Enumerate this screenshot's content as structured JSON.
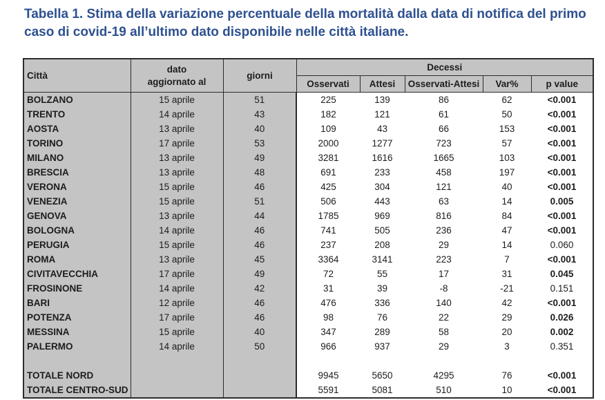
{
  "title": "Tabella 1. Stima della variazione percentuale della mortalità dalla data di notifica del primo caso di covid-19 all’ultimo dato disponibile nelle città italiane.",
  "colors": {
    "title_blue": "#2e5190",
    "header_gray": "#c4c4c4",
    "border_dark": "#2b2b2b",
    "text": "#1c1c1c"
  },
  "table": {
    "headers": {
      "citta": "Città",
      "dato_line1": "dato",
      "dato_line2": "aggiornato al",
      "giorni": "giorni",
      "decessi": "Decessi",
      "sub": [
        "Osservati",
        "Attesi",
        "Osservati-Attesi",
        "Var%",
        "p value"
      ]
    },
    "rows": [
      {
        "citta": "BOLZANO",
        "dato": "15 aprile",
        "giorni": "51",
        "osservati": "225",
        "attesi": "139",
        "diff": "86",
        "var": "62",
        "p": "<0.001",
        "p_bold": true
      },
      {
        "citta": "TRENTO",
        "dato": "14 aprile",
        "giorni": "43",
        "osservati": "182",
        "attesi": "121",
        "diff": "61",
        "var": "50",
        "p": "<0.001",
        "p_bold": true
      },
      {
        "citta": "AOSTA",
        "dato": "13 aprile",
        "giorni": "40",
        "osservati": "109",
        "attesi": "43",
        "diff": "66",
        "var": "153",
        "p": "<0.001",
        "p_bold": true
      },
      {
        "citta": "TORINO",
        "dato": "17 aprile",
        "giorni": "53",
        "osservati": "2000",
        "attesi": "1277",
        "diff": "723",
        "var": "57",
        "p": "<0.001",
        "p_bold": true
      },
      {
        "citta": "MILANO",
        "dato": "13 aprile",
        "giorni": "49",
        "osservati": "3281",
        "attesi": "1616",
        "diff": "1665",
        "var": "103",
        "p": "<0.001",
        "p_bold": true
      },
      {
        "citta": "BRESCIA",
        "dato": "13 aprile",
        "giorni": "48",
        "osservati": "691",
        "attesi": "233",
        "diff": "458",
        "var": "197",
        "p": "<0.001",
        "p_bold": true
      },
      {
        "citta": "VERONA",
        "dato": "15 aprile",
        "giorni": "46",
        "osservati": "425",
        "attesi": "304",
        "diff": "121",
        "var": "40",
        "p": "<0.001",
        "p_bold": true
      },
      {
        "citta": "VENEZIA",
        "dato": "15 aprile",
        "giorni": "51",
        "osservati": "506",
        "attesi": "443",
        "diff": "63",
        "var": "14",
        "p": "0.005",
        "p_bold": true
      },
      {
        "citta": "GENOVA",
        "dato": "13 aprile",
        "giorni": "44",
        "osservati": "1785",
        "attesi": "969",
        "diff": "816",
        "var": "84",
        "p": "<0.001",
        "p_bold": true
      },
      {
        "citta": "BOLOGNA",
        "dato": "14 aprile",
        "giorni": "46",
        "osservati": "741",
        "attesi": "505",
        "diff": "236",
        "var": "47",
        "p": "<0.001",
        "p_bold": true
      },
      {
        "citta": "PERUGIA",
        "dato": "15 aprile",
        "giorni": "46",
        "osservati": "237",
        "attesi": "208",
        "diff": "29",
        "var": "14",
        "p": "0.060",
        "p_bold": false
      },
      {
        "citta": "ROMA",
        "dato": "13 aprile",
        "giorni": "45",
        "osservati": "3364",
        "attesi": "3141",
        "diff": "223",
        "var": "7",
        "p": "<0.001",
        "p_bold": true
      },
      {
        "citta": "CIVITAVECCHIA",
        "dato": "17 aprile",
        "giorni": "49",
        "osservati": "72",
        "attesi": "55",
        "diff": "17",
        "var": "31",
        "p": "0.045",
        "p_bold": true
      },
      {
        "citta": "FROSINONE",
        "dato": "14 aprile",
        "giorni": "42",
        "osservati": "31",
        "attesi": "39",
        "diff": "-8",
        "var": "-21",
        "p": "0.151",
        "p_bold": false
      },
      {
        "citta": "BARI",
        "dato": "12 aprile",
        "giorni": "46",
        "osservati": "476",
        "attesi": "336",
        "diff": "140",
        "var": "42",
        "p": "<0.001",
        "p_bold": true
      },
      {
        "citta": "POTENZA",
        "dato": "17 aprile",
        "giorni": "46",
        "osservati": "98",
        "attesi": "76",
        "diff": "22",
        "var": "29",
        "p": "0.026",
        "p_bold": true
      },
      {
        "citta": "MESSINA",
        "dato": "15 aprile",
        "giorni": "40",
        "osservati": "347",
        "attesi": "289",
        "diff": "58",
        "var": "20",
        "p": "0.002",
        "p_bold": true
      },
      {
        "citta": "PALERMO",
        "dato": "14 aprile",
        "giorni": "50",
        "osservati": "966",
        "attesi": "937",
        "diff": "29",
        "var": "3",
        "p": "0.351",
        "p_bold": false
      }
    ],
    "totals": [
      {
        "citta": "TOTALE NORD",
        "dato": "",
        "giorni": "",
        "osservati": "9945",
        "attesi": "5650",
        "diff": "4295",
        "var": "76",
        "p": "<0.001",
        "p_bold": true
      },
      {
        "citta": "TOTALE CENTRO-SUD",
        "dato": "",
        "giorni": "",
        "osservati": "5591",
        "attesi": "5081",
        "diff": "510",
        "var": "10",
        "p": "<0.001",
        "p_bold": true
      }
    ]
  }
}
